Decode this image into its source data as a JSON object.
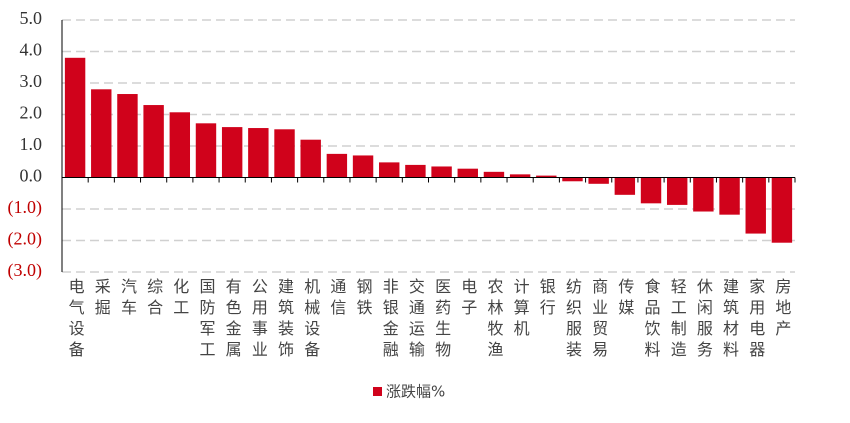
{
  "chart_data": {
    "type": "bar",
    "categories": [
      "电气设备",
      "采掘",
      "汽车",
      "综合",
      "化工",
      "国防军工",
      "有色金属",
      "公用事业",
      "建筑装饰",
      "机械设备",
      "通信",
      "钢铁",
      "非银金融",
      "交通运输",
      "医药生物",
      "电子",
      "农林牧渔",
      "计算机",
      "银行",
      "纺织服装",
      "商业贸易",
      "传媒",
      "食品饮料",
      "轻工制造",
      "休闲服务",
      "建筑材料",
      "家用电器",
      "房地产"
    ],
    "series": [
      {
        "name": "涨跌幅%",
        "color": "#d0021b",
        "values": [
          3.8,
          2.8,
          2.65,
          2.3,
          2.07,
          1.72,
          1.6,
          1.57,
          1.53,
          1.2,
          0.75,
          0.7,
          0.48,
          0.4,
          0.35,
          0.28,
          0.18,
          0.1,
          0.06,
          -0.12,
          -0.2,
          -0.55,
          -0.82,
          -0.87,
          -1.08,
          -1.18,
          -1.78,
          -2.07
        ]
      }
    ],
    "ylim": [
      -3,
      5
    ],
    "yticks": [
      {
        "value": 5,
        "label": "5.0"
      },
      {
        "value": 4,
        "label": "4.0"
      },
      {
        "value": 3,
        "label": "3.0"
      },
      {
        "value": 2,
        "label": "2.0"
      },
      {
        "value": 1,
        "label": "1.0"
      },
      {
        "value": 0,
        "label": "0.0"
      },
      {
        "value": -1,
        "label": "(1.0)"
      },
      {
        "value": -2,
        "label": "(2.0)"
      },
      {
        "value": -3,
        "label": "(3.0)"
      }
    ],
    "grid": true,
    "legend": "bottom"
  }
}
